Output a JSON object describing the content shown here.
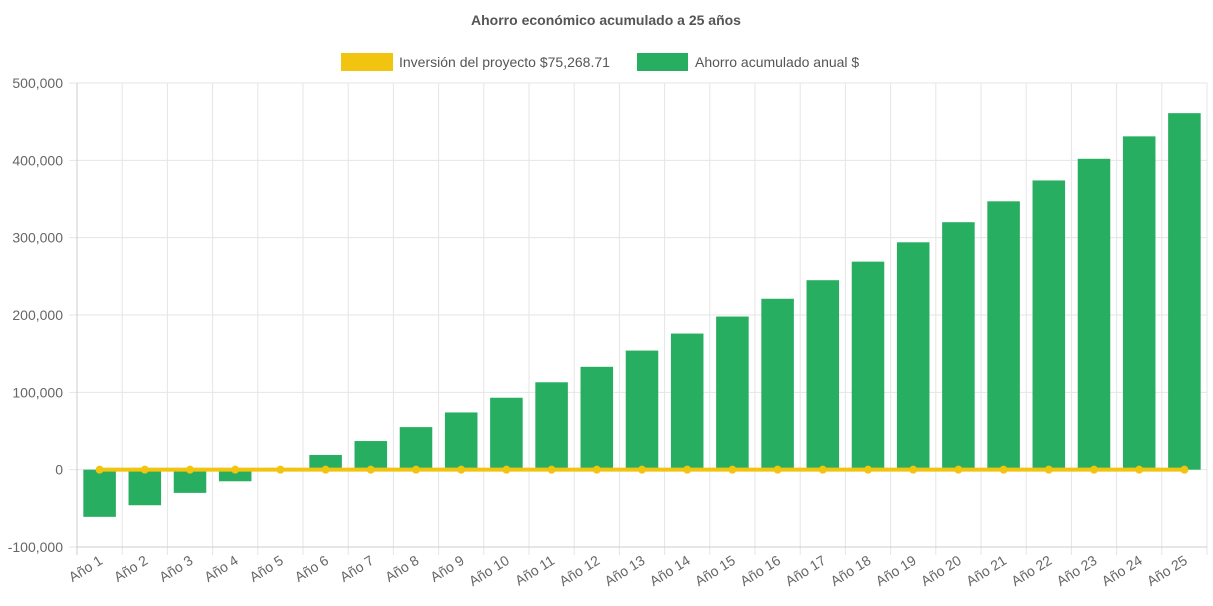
{
  "chart_data": {
    "type": "bar",
    "title": "Ahorro económico acumulado a 25 años",
    "xlabel": "",
    "ylabel": "",
    "categories": [
      "Año 1",
      "Año 2",
      "Año 3",
      "Año 4",
      "Año 5",
      "Año 6",
      "Año 7",
      "Año 8",
      "Año 9",
      "Año 10",
      "Año 11",
      "Año 12",
      "Año 13",
      "Año 14",
      "Año 15",
      "Año 16",
      "Año 17",
      "Año 18",
      "Año 19",
      "Año 20",
      "Año 21",
      "Año 22",
      "Año 23",
      "Año 24",
      "Año 25"
    ],
    "ylim": [
      -100000,
      500000
    ],
    "yticks": [
      -100000,
      0,
      100000,
      200000,
      300000,
      400000,
      500000
    ],
    "ytick_labels": [
      "-100,000",
      "0",
      "100,000",
      "200,000",
      "300,000",
      "400,000",
      "500,000"
    ],
    "grid": true,
    "legend_position": "top",
    "series": [
      {
        "name": "Inversión del proyecto $75,268.71",
        "type": "line",
        "color": "#f1c40f",
        "values": [
          0,
          0,
          0,
          0,
          0,
          0,
          0,
          0,
          0,
          0,
          0,
          0,
          0,
          0,
          0,
          0,
          0,
          0,
          0,
          0,
          0,
          0,
          0,
          0,
          0
        ]
      },
      {
        "name": "Ahorro acumulado anual $",
        "type": "bar",
        "color": "#27ae60",
        "values": [
          -61000,
          -46000,
          -30000,
          -15000,
          1000,
          19000,
          37000,
          55000,
          74000,
          93000,
          113000,
          133000,
          154000,
          176000,
          198000,
          221000,
          245000,
          269000,
          294000,
          320000,
          347000,
          374000,
          402000,
          431000,
          461000
        ]
      }
    ]
  }
}
